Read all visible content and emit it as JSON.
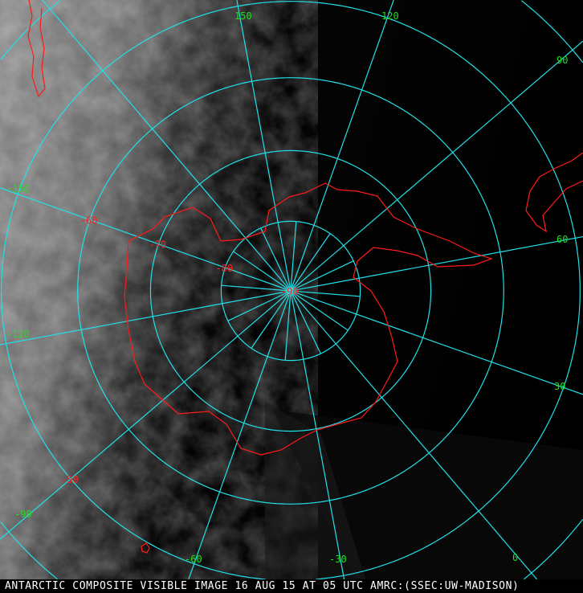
{
  "caption": "ANTARCTIC COMPOSITE VISIBLE IMAGE 16 AUG 15 AT 05 UTC AMRC:(SSEC:UW-MADISON)",
  "projection": "south polar stereographic",
  "colors": {
    "graticule": "#22e0e8",
    "coastline": "#ff1a1a",
    "longitude_labels": "#22dd22",
    "latitude_labels": "#ff2020",
    "caption": "#ffffff"
  },
  "latitudes": [
    -80,
    -70,
    -60,
    -50,
    -40,
    -30
  ],
  "longitude_labels": [
    {
      "lon": 150,
      "text": "150"
    },
    {
      "lon": 120,
      "text": "120"
    },
    {
      "lon": 90,
      "text": "90"
    },
    {
      "lon": 60,
      "text": "60"
    },
    {
      "lon": 30,
      "text": "30"
    },
    {
      "lon": 0,
      "text": "0"
    },
    {
      "lon": -30,
      "text": "-30"
    },
    {
      "lon": -60,
      "text": "-60"
    },
    {
      "lon": -90,
      "text": "-90"
    },
    {
      "lon": -120,
      "text": "-120"
    },
    {
      "lon": -150,
      "text": "-150"
    }
  ],
  "latitude_labels": [
    {
      "lat": -90,
      "text": "-90"
    },
    {
      "lat": -80,
      "text": "-80"
    },
    {
      "lat": -70,
      "text": "-70"
    },
    {
      "lat": -60,
      "text": "-60"
    },
    {
      "lat": -50,
      "text": "-50"
    }
  ]
}
